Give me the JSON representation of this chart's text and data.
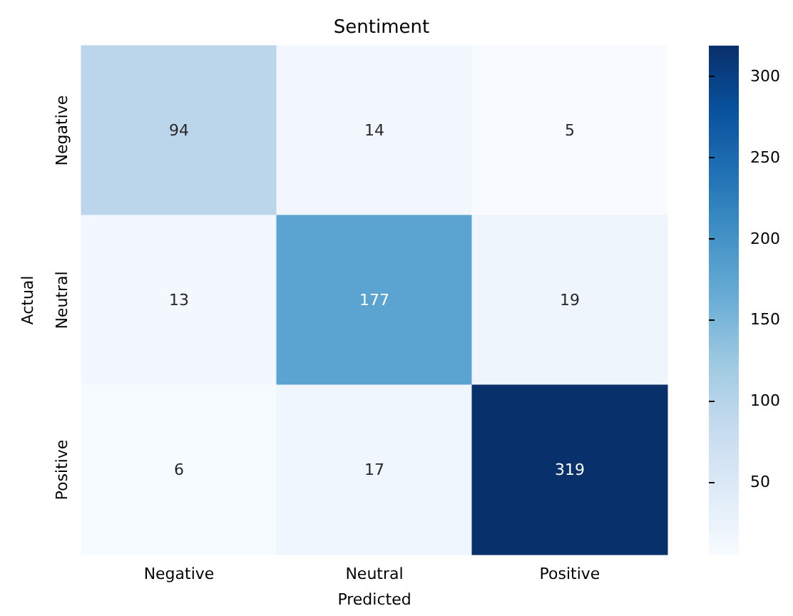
{
  "chart_data": {
    "type": "heatmap",
    "title": "Sentiment",
    "xlabel": "Predicted",
    "ylabel": "Actual",
    "categories": [
      "Negative",
      "Neutral",
      "Positive"
    ],
    "y_categories": [
      "Negative",
      "Neutral",
      "Positive"
    ],
    "cells": [
      [
        94,
        14,
        5
      ],
      [
        13,
        177,
        19
      ],
      [
        6,
        17,
        319
      ]
    ],
    "clim": [
      5,
      319
    ],
    "cticks": [
      50,
      100,
      150,
      200,
      250,
      300
    ],
    "data_labels": true
  }
}
